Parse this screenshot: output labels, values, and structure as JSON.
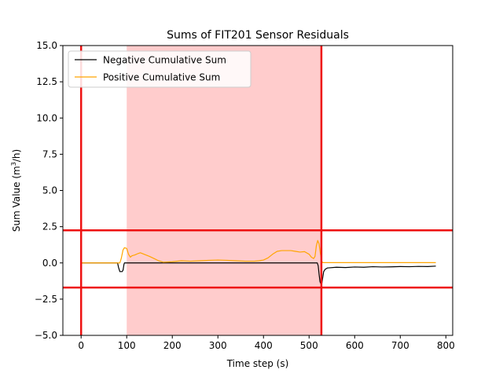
{
  "chart_data": {
    "type": "line",
    "title": "Sums of FIT201 Sensor Residuals",
    "xlabel": "Time step (s)",
    "ylabel_main": "Sum Value (m",
    "ylabel_sup": "3",
    "ylabel_tail": "/h)",
    "xlim": [
      -40,
      815
    ],
    "ylim": [
      -5,
      15
    ],
    "xticks": [
      0,
      100,
      200,
      300,
      400,
      500,
      600,
      700,
      800
    ],
    "yticks": [
      -5.0,
      -2.5,
      0.0,
      2.5,
      5.0,
      7.5,
      10.0,
      12.5,
      15.0
    ],
    "xtick_labels": [
      "0",
      "100",
      "200",
      "300",
      "400",
      "500",
      "600",
      "700",
      "800"
    ],
    "ytick_labels": [
      "−5.0",
      "−2.5",
      "0.0",
      "2.5",
      "5.0",
      "7.5",
      "10.0",
      "12.5",
      "15.0"
    ],
    "legend_position": "top-left",
    "grid": false,
    "shaded_region": {
      "x_start": 100,
      "x_end": 527,
      "color": "#ffcccc"
    },
    "vlines": [
      {
        "x": 0,
        "color": "#ee1111"
      },
      {
        "x": 527,
        "color": "#ee1111"
      }
    ],
    "hlines": [
      {
        "y": 2.25,
        "color": "#ee1111"
      },
      {
        "y": -1.7,
        "color": "#ee1111"
      }
    ],
    "series": [
      {
        "name": "Negative Cumulative Sum",
        "color": "#000000",
        "x": [
          0,
          80,
          82,
          85,
          90,
          92,
          94,
          95,
          100,
          200,
          300,
          400,
          500,
          518,
          520,
          522,
          524,
          526,
          528,
          530,
          532,
          535,
          540,
          560,
          580,
          600,
          620,
          640,
          660,
          680,
          700,
          720,
          740,
          760,
          778
        ],
        "y": [
          0,
          0,
          -0.3,
          -0.6,
          -0.6,
          -0.5,
          -0.1,
          0,
          0,
          0,
          0,
          0,
          0,
          0,
          -0.2,
          -0.8,
          -1.3,
          -1.45,
          -1.4,
          -1.0,
          -0.6,
          -0.45,
          -0.35,
          -0.3,
          -0.32,
          -0.28,
          -0.3,
          -0.26,
          -0.28,
          -0.27,
          -0.25,
          -0.26,
          -0.24,
          -0.25,
          -0.22
        ]
      },
      {
        "name": "Positive Cumulative Sum",
        "color": "#ffa500",
        "x": [
          0,
          85,
          88,
          92,
          95,
          100,
          104,
          108,
          112,
          118,
          125,
          130,
          138,
          150,
          160,
          170,
          180,
          200,
          220,
          240,
          260,
          280,
          300,
          320,
          340,
          360,
          380,
          390,
          400,
          410,
          420,
          430,
          440,
          450,
          460,
          470,
          480,
          490,
          500,
          505,
          510,
          513,
          516,
          519,
          522,
          525,
          528,
          530,
          540,
          600,
          700,
          778
        ],
        "y": [
          0,
          0,
          0.3,
          0.9,
          1.05,
          1.0,
          0.6,
          0.4,
          0.5,
          0.55,
          0.65,
          0.7,
          0.6,
          0.45,
          0.3,
          0.15,
          0.05,
          0.08,
          0.15,
          0.12,
          0.15,
          0.18,
          0.2,
          0.18,
          0.15,
          0.12,
          0.12,
          0.15,
          0.2,
          0.35,
          0.6,
          0.8,
          0.85,
          0.85,
          0.85,
          0.8,
          0.75,
          0.78,
          0.6,
          0.4,
          0.3,
          0.45,
          1.2,
          1.55,
          1.3,
          0.6,
          0.1,
          0.02,
          0.02,
          0.02,
          0.02,
          0.02
        ]
      }
    ]
  }
}
